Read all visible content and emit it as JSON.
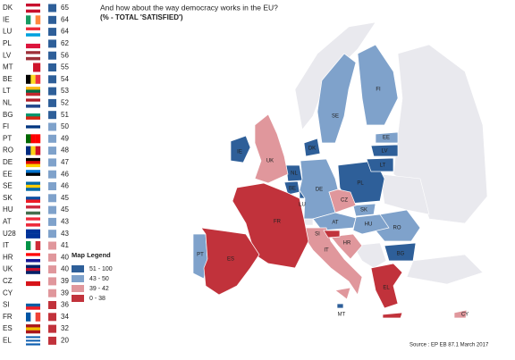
{
  "chart_data": {
    "type": "map",
    "title": "And how about the way democracy works in the EU?",
    "subtitle": "(% - TOTAL 'SATISFIED')",
    "source": "Source : EP EB 87.1 March 2017",
    "countries": [
      {
        "code": "DK",
        "value": 65
      },
      {
        "code": "IE",
        "value": 64
      },
      {
        "code": "LU",
        "value": 64
      },
      {
        "code": "PL",
        "value": 62
      },
      {
        "code": "LV",
        "value": 56
      },
      {
        "code": "MT",
        "value": 55
      },
      {
        "code": "BE",
        "value": 54
      },
      {
        "code": "LT",
        "value": 53
      },
      {
        "code": "NL",
        "value": 52
      },
      {
        "code": "BG",
        "value": 51
      },
      {
        "code": "FI",
        "value": 50
      },
      {
        "code": "PT",
        "value": 49
      },
      {
        "code": "RO",
        "value": 48
      },
      {
        "code": "DE",
        "value": 47
      },
      {
        "code": "EE",
        "value": 46
      },
      {
        "code": "SE",
        "value": 46
      },
      {
        "code": "SK",
        "value": 45
      },
      {
        "code": "HU",
        "value": 45
      },
      {
        "code": "AT",
        "value": 43
      },
      {
        "code": "U28",
        "value": 43
      },
      {
        "code": "IT",
        "value": 41
      },
      {
        "code": "HR",
        "value": 40
      },
      {
        "code": "UK",
        "value": 40
      },
      {
        "code": "CZ",
        "value": 39
      },
      {
        "code": "CY",
        "value": 39
      },
      {
        "code": "SI",
        "value": 36
      },
      {
        "code": "FR",
        "value": 34
      },
      {
        "code": "ES",
        "value": 32
      },
      {
        "code": "EL",
        "value": 20
      }
    ],
    "legend": {
      "title": "Map Legend",
      "bins": [
        {
          "label": "51 - 100",
          "min": 51,
          "max": 100,
          "color": "#2e5f99"
        },
        {
          "label": "43 - 50",
          "min": 43,
          "max": 50,
          "color": "#7fa2cb"
        },
        {
          "label": "39 - 42",
          "min": 39,
          "max": 42,
          "color": "#e0979c"
        },
        {
          "label": "0 - 38",
          "min": 0,
          "max": 38,
          "color": "#c1323b"
        }
      ]
    }
  }
}
